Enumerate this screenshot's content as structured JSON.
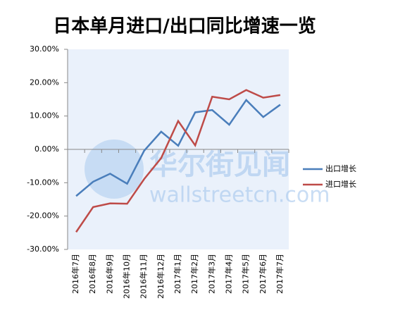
{
  "chart_data": {
    "type": "line",
    "title": "日本单月进口/出口同比增速一览",
    "categories": [
      "2016年7月",
      "2016年8月",
      "2016年9月",
      "2016年10月",
      "2016年11月",
      "2016年12月",
      "2017年1月",
      "2017年2月",
      "2017年3月",
      "2017年4月",
      "2017年5月",
      "2017年6月",
      "2017年7月"
    ],
    "series": [
      {
        "name": "出口增长",
        "color": "#4a7ebb",
        "values": [
          -14.0,
          -9.7,
          -7.3,
          -10.3,
          -0.4,
          5.3,
          1.1,
          11.1,
          11.8,
          7.4,
          14.8,
          9.7,
          13.4
        ]
      },
      {
        "name": "进口增长",
        "color": "#be4b48",
        "values": [
          -24.8,
          -17.3,
          -16.2,
          -16.3,
          -8.9,
          -2.6,
          8.5,
          1.2,
          15.8,
          15.0,
          17.8,
          15.5,
          16.3
        ]
      }
    ],
    "ylim": [
      -30,
      30
    ],
    "yticks": [
      {
        "value": -30,
        "label": "-30.00%"
      },
      {
        "value": -20,
        "label": "-20.00%"
      },
      {
        "value": -10,
        "label": "-10.00%"
      },
      {
        "value": 0,
        "label": "0.00%"
      },
      {
        "value": 10,
        "label": "10.00%"
      },
      {
        "value": 20,
        "label": "20.00%"
      },
      {
        "value": 30,
        "label": "30.00%"
      }
    ],
    "grid": false,
    "legend": "right",
    "plot_background": "#eaf1fb",
    "watermark": [
      "华尔街见闻",
      "wallstreetcn.com"
    ]
  }
}
